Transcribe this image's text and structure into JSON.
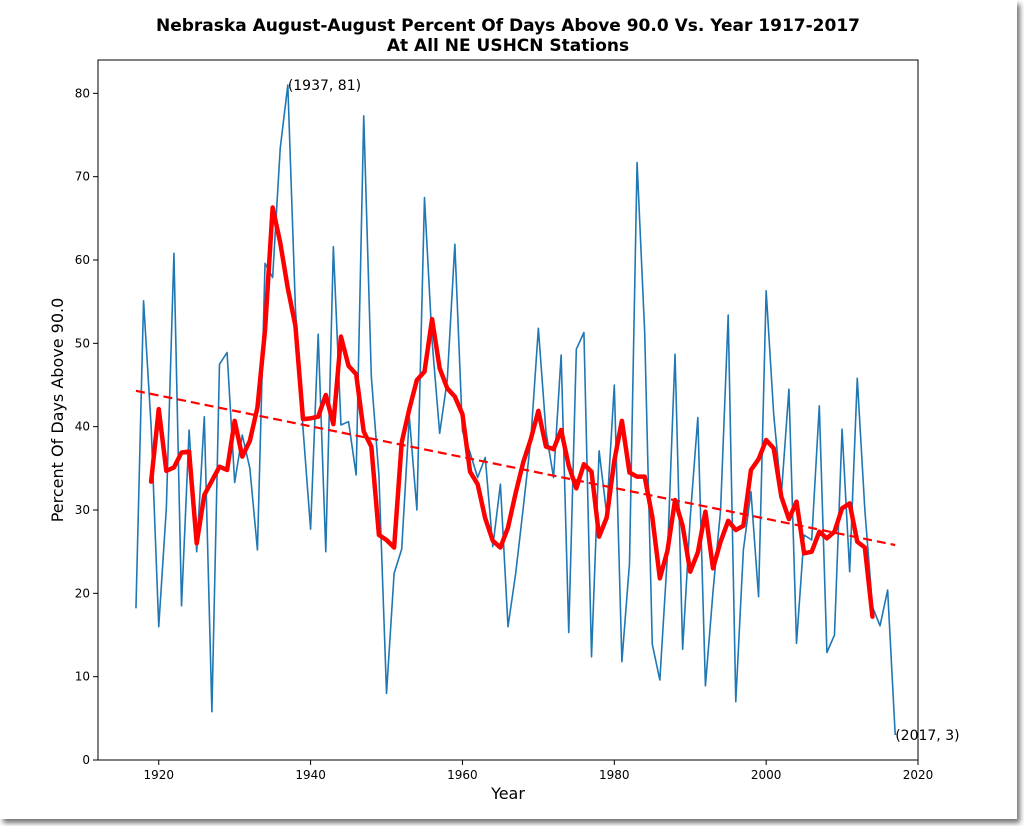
{
  "chart_data": {
    "type": "line",
    "title": "Nebraska August-August Percent Of Days Above 90.0 Vs. Year 1917-2017",
    "subtitle": "At All NE USHCN Stations",
    "xlabel": "Year",
    "ylabel": "Percent Of Days Above 90.0",
    "xlim": [
      1912,
      2020
    ],
    "ylim": [
      0,
      84
    ],
    "xticks": [
      1920,
      1940,
      1960,
      1980,
      2000,
      2020
    ],
    "yticks": [
      0,
      10,
      20,
      30,
      40,
      50,
      60,
      70,
      80
    ],
    "grid": false,
    "legend": "none",
    "series": [
      {
        "color": "#1f77b4",
        "style": "thin solid line",
        "x_start": 1917,
        "values": [
          18.2,
          55.1,
          40.0,
          16.0,
          30.2,
          60.8,
          18.5,
          39.6,
          25.0,
          41.2,
          5.8,
          47.5,
          48.9,
          33.3,
          39.0,
          35.0,
          25.2,
          59.6,
          57.9,
          73.4,
          81.0,
          54.2,
          39.8,
          27.7,
          51.1,
          25.0,
          61.6,
          40.2,
          40.6,
          34.2,
          77.3,
          46.0,
          34.1,
          8.0,
          22.4,
          25.3,
          41.2,
          30.0,
          67.5,
          50.3,
          39.2,
          45.6,
          61.9,
          39.5,
          36.9,
          33.9,
          36.3,
          25.6,
          33.1,
          16.0,
          22.3,
          30.2,
          38.4,
          51.8,
          39.4,
          33.9,
          48.6,
          15.3,
          49.3,
          51.3,
          12.4,
          37.1,
          29.5,
          45.0,
          11.8,
          23.6,
          71.7,
          51.4,
          13.9,
          9.6,
          24.6,
          48.7,
          13.3,
          29.1,
          41.1,
          8.9,
          20.2,
          30.0,
          53.4,
          7.0,
          25.2,
          32.2,
          19.6,
          56.3,
          41.4,
          31.8,
          44.5,
          14.0,
          27.0,
          26.4,
          42.5,
          12.9,
          15.0,
          39.7,
          22.6,
          45.8,
          30.0,
          18.4,
          16.1,
          20.4,
          3.0
        ]
      },
      {
        "color": "#ff0000",
        "style": "thick solid line",
        "x_start": 1919,
        "values": [
          33.4,
          42.1,
          34.7,
          35.1,
          36.9,
          37.0,
          26.0,
          31.8,
          33.5,
          35.2,
          34.8,
          40.7,
          36.4,
          38.3,
          42.3,
          51.6,
          66.3,
          62.1,
          56.6,
          52.1,
          40.9,
          41.0,
          41.2,
          43.8,
          40.3,
          50.8,
          47.3,
          46.3,
          39.4,
          37.6,
          27.0,
          26.4,
          25.5,
          38.1,
          42.1,
          45.6,
          46.6,
          52.9,
          47.0,
          44.6,
          43.6,
          41.5,
          34.6,
          33.1,
          29.0,
          26.3,
          25.5,
          27.9,
          32.0,
          35.7,
          38.5,
          41.9,
          37.6,
          37.3,
          39.6,
          35.3,
          32.6,
          35.5,
          34.6,
          26.8,
          29.1,
          35.9,
          40.7,
          34.5,
          34.0,
          34.0,
          29.2,
          21.8,
          25.1,
          31.2,
          28.1,
          22.6,
          24.9,
          29.8,
          23.0,
          26.2,
          28.7,
          27.6,
          28.1,
          34.8,
          36.1,
          38.4,
          37.4,
          31.6,
          28.9,
          31.0,
          24.8,
          25.0,
          27.4,
          26.6,
          27.4,
          30.2,
          30.8,
          26.2,
          25.5,
          17.2
        ]
      },
      {
        "color": "#ff0000",
        "style": "dashed trend line",
        "x": [
          1917,
          2017
        ],
        "y": [
          44.3,
          25.8
        ]
      }
    ],
    "annotations": [
      {
        "text": "(1937, 81)",
        "x": 1937,
        "y": 81
      },
      {
        "text": "(2017, 3)",
        "x": 2017,
        "y": 3
      }
    ]
  }
}
